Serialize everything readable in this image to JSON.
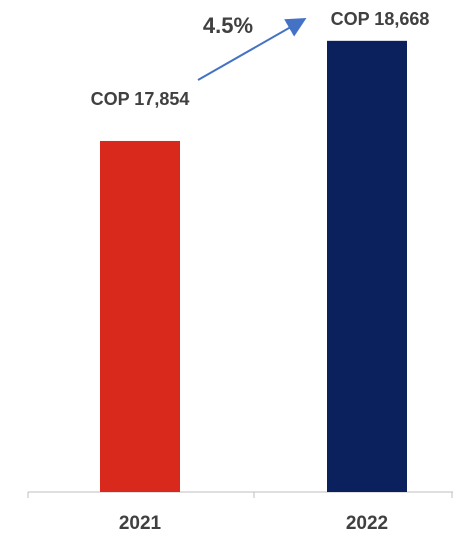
{
  "chart_data": {
    "type": "bar",
    "categories": [
      "2021",
      "2022"
    ],
    "values": [
      17854,
      18668
    ],
    "value_labels": [
      "COP 17,854",
      "COP 18,668"
    ],
    "colors": [
      "#d9291c",
      "#0b215e"
    ],
    "annotation": "4.5%",
    "ylim": [
      15000,
      19000
    ]
  }
}
